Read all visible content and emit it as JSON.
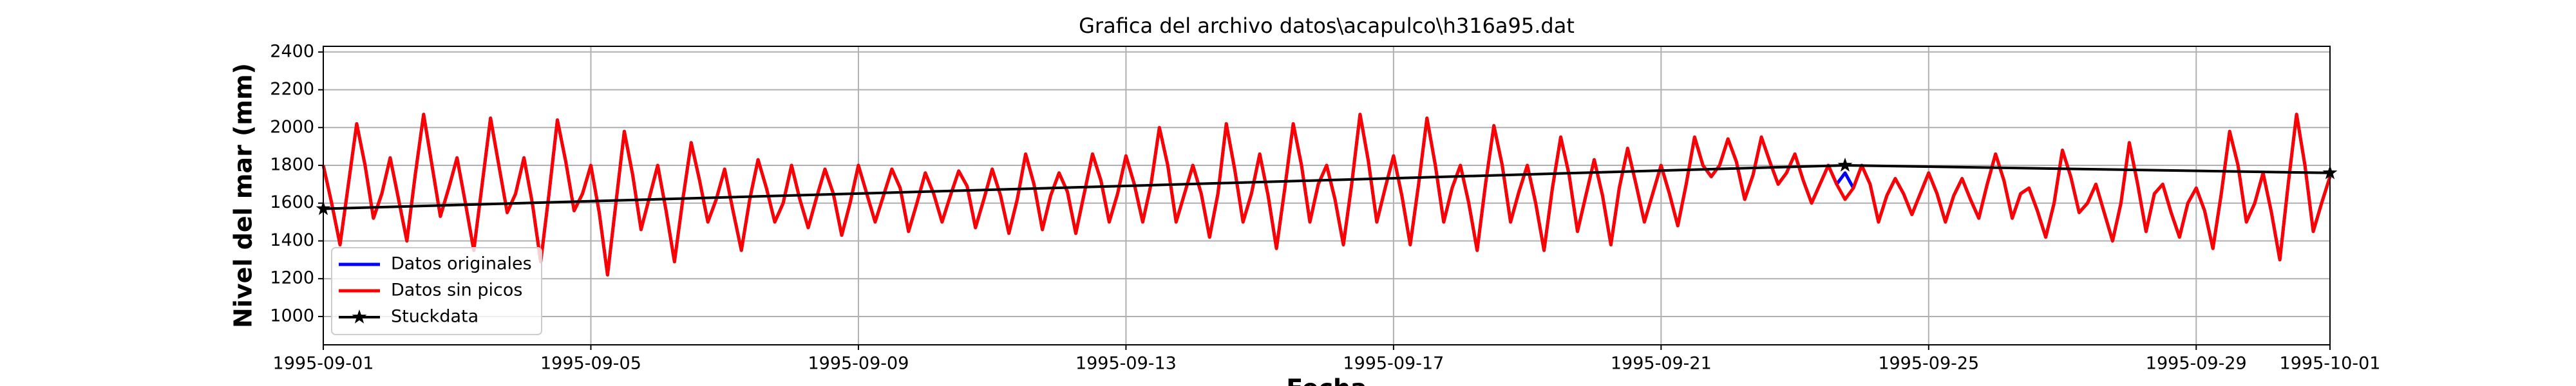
{
  "chart_data": {
    "type": "line",
    "title": "Grafica del archivo datos\\acapulco\\h316a95.dat",
    "y_label": "Nivel del mar (mm)",
    "x_label": "Fecha",
    "xlim": [
      "1995-09-01",
      "1995-10-01"
    ],
    "xticks": [
      "1995-09-01",
      "1995-09-05",
      "1995-09-09",
      "1995-09-13",
      "1995-09-17",
      "1995-09-21",
      "1995-09-25",
      "1995-09-29",
      "1995-10-01"
    ],
    "ylim": [
      850,
      2430
    ],
    "yticks": [
      1000,
      1200,
      1400,
      1600,
      1800,
      2000,
      2200,
      2400
    ],
    "grid": true,
    "legend_position": "lower left",
    "x": [
      "1995-09-01 00:00",
      "1995-09-01 03:00",
      "1995-09-01 06:00",
      "1995-09-01 09:00",
      "1995-09-01 12:00",
      "1995-09-01 15:00",
      "1995-09-01 18:00",
      "1995-09-01 21:00",
      "1995-09-02 00:00",
      "1995-09-02 03:00",
      "1995-09-02 06:00",
      "1995-09-02 09:00",
      "1995-09-02 12:00",
      "1995-09-02 15:00",
      "1995-09-02 18:00",
      "1995-09-02 21:00",
      "1995-09-03 00:00",
      "1995-09-03 03:00",
      "1995-09-03 06:00",
      "1995-09-03 09:00",
      "1995-09-03 12:00",
      "1995-09-03 15:00",
      "1995-09-03 18:00",
      "1995-09-03 21:00",
      "1995-09-04 00:00",
      "1995-09-04 03:00",
      "1995-09-04 06:00",
      "1995-09-04 09:00",
      "1995-09-04 12:00",
      "1995-09-04 15:00",
      "1995-09-04 18:00",
      "1995-09-04 21:00",
      "1995-09-05 00:00",
      "1995-09-05 03:00",
      "1995-09-05 06:00",
      "1995-09-05 09:00",
      "1995-09-05 12:00",
      "1995-09-05 15:00",
      "1995-09-05 18:00",
      "1995-09-05 21:00",
      "1995-09-06 00:00",
      "1995-09-06 03:00",
      "1995-09-06 06:00",
      "1995-09-06 09:00",
      "1995-09-06 12:00",
      "1995-09-06 15:00",
      "1995-09-06 18:00",
      "1995-09-06 21:00",
      "1995-09-07 00:00",
      "1995-09-07 03:00",
      "1995-09-07 06:00",
      "1995-09-07 09:00",
      "1995-09-07 12:00",
      "1995-09-07 15:00",
      "1995-09-07 18:00",
      "1995-09-07 21:00",
      "1995-09-08 00:00",
      "1995-09-08 03:00",
      "1995-09-08 06:00",
      "1995-09-08 09:00",
      "1995-09-08 12:00",
      "1995-09-08 15:00",
      "1995-09-08 18:00",
      "1995-09-08 21:00",
      "1995-09-09 00:00",
      "1995-09-09 03:00",
      "1995-09-09 06:00",
      "1995-09-09 09:00",
      "1995-09-09 12:00",
      "1995-09-09 15:00",
      "1995-09-09 18:00",
      "1995-09-09 21:00",
      "1995-09-10 00:00",
      "1995-09-10 03:00",
      "1995-09-10 06:00",
      "1995-09-10 09:00",
      "1995-09-10 12:00",
      "1995-09-10 15:00",
      "1995-09-10 18:00",
      "1995-09-10 21:00",
      "1995-09-11 00:00",
      "1995-09-11 03:00",
      "1995-09-11 06:00",
      "1995-09-11 09:00",
      "1995-09-11 12:00",
      "1995-09-11 15:00",
      "1995-09-11 18:00",
      "1995-09-11 21:00",
      "1995-09-12 00:00",
      "1995-09-12 03:00",
      "1995-09-12 06:00",
      "1995-09-12 09:00",
      "1995-09-12 12:00",
      "1995-09-12 15:00",
      "1995-09-12 18:00",
      "1995-09-12 21:00",
      "1995-09-13 00:00",
      "1995-09-13 03:00",
      "1995-09-13 06:00",
      "1995-09-13 09:00",
      "1995-09-13 12:00",
      "1995-09-13 15:00",
      "1995-09-13 18:00",
      "1995-09-13 21:00",
      "1995-09-14 00:00",
      "1995-09-14 03:00",
      "1995-09-14 06:00",
      "1995-09-14 09:00",
      "1995-09-14 12:00",
      "1995-09-14 15:00",
      "1995-09-14 18:00",
      "1995-09-14 21:00",
      "1995-09-15 00:00",
      "1995-09-15 03:00",
      "1995-09-15 06:00",
      "1995-09-15 09:00",
      "1995-09-15 12:00",
      "1995-09-15 15:00",
      "1995-09-15 18:00",
      "1995-09-15 21:00",
      "1995-09-16 00:00",
      "1995-09-16 03:00",
      "1995-09-16 06:00",
      "1995-09-16 09:00",
      "1995-09-16 12:00",
      "1995-09-16 15:00",
      "1995-09-16 18:00",
      "1995-09-16 21:00",
      "1995-09-17 00:00",
      "1995-09-17 03:00",
      "1995-09-17 06:00",
      "1995-09-17 09:00",
      "1995-09-17 12:00",
      "1995-09-17 15:00",
      "1995-09-17 18:00",
      "1995-09-17 21:00",
      "1995-09-18 00:00",
      "1995-09-18 03:00",
      "1995-09-18 06:00",
      "1995-09-18 09:00",
      "1995-09-18 12:00",
      "1995-09-18 15:00",
      "1995-09-18 18:00",
      "1995-09-18 21:00",
      "1995-09-19 00:00",
      "1995-09-19 03:00",
      "1995-09-19 06:00",
      "1995-09-19 09:00",
      "1995-09-19 12:00",
      "1995-09-19 15:00",
      "1995-09-19 18:00",
      "1995-09-19 21:00",
      "1995-09-20 00:00",
      "1995-09-20 03:00",
      "1995-09-20 06:00",
      "1995-09-20 09:00",
      "1995-09-20 12:00",
      "1995-09-20 15:00",
      "1995-09-20 18:00",
      "1995-09-20 21:00",
      "1995-09-21 00:00",
      "1995-09-21 03:00",
      "1995-09-21 06:00",
      "1995-09-21 09:00",
      "1995-09-21 12:00",
      "1995-09-21 15:00",
      "1995-09-21 18:00",
      "1995-09-21 21:00",
      "1995-09-22 00:00",
      "1995-09-22 03:00",
      "1995-09-22 06:00",
      "1995-09-22 09:00",
      "1995-09-22 12:00",
      "1995-09-22 15:00",
      "1995-09-22 18:00",
      "1995-09-22 21:00",
      "1995-09-23 00:00",
      "1995-09-23 03:00",
      "1995-09-23 06:00",
      "1995-09-23 09:00",
      "1995-09-23 12:00",
      "1995-09-23 15:00",
      "1995-09-23 18:00",
      "1995-09-23 21:00",
      "1995-09-24 00:00",
      "1995-09-24 03:00",
      "1995-09-24 06:00",
      "1995-09-24 09:00",
      "1995-09-24 12:00",
      "1995-09-24 15:00",
      "1995-09-24 18:00",
      "1995-09-24 21:00",
      "1995-09-25 00:00",
      "1995-09-25 03:00",
      "1995-09-25 06:00",
      "1995-09-25 09:00",
      "1995-09-25 12:00",
      "1995-09-25 15:00",
      "1995-09-25 18:00",
      "1995-09-25 21:00",
      "1995-09-26 00:00",
      "1995-09-26 03:00",
      "1995-09-26 06:00",
      "1995-09-26 09:00",
      "1995-09-26 12:00",
      "1995-09-26 15:00",
      "1995-09-26 18:00",
      "1995-09-26 21:00",
      "1995-09-27 00:00",
      "1995-09-27 03:00",
      "1995-09-27 06:00",
      "1995-09-27 09:00",
      "1995-09-27 12:00",
      "1995-09-27 15:00",
      "1995-09-27 18:00",
      "1995-09-27 21:00",
      "1995-09-28 00:00",
      "1995-09-28 03:00",
      "1995-09-28 06:00",
      "1995-09-28 09:00",
      "1995-09-28 12:00",
      "1995-09-28 15:00",
      "1995-09-28 18:00",
      "1995-09-28 21:00",
      "1995-09-29 00:00",
      "1995-09-29 03:00",
      "1995-09-29 06:00",
      "1995-09-29 09:00",
      "1995-09-29 12:00",
      "1995-09-29 15:00",
      "1995-09-29 18:00",
      "1995-09-29 21:00",
      "1995-09-30 00:00",
      "1995-09-30 03:00",
      "1995-09-30 06:00",
      "1995-09-30 09:00",
      "1995-09-30 12:00",
      "1995-09-30 15:00",
      "1995-09-30 18:00",
      "1995-09-30 21:00",
      "1995-10-01 00:00"
    ],
    "series": [
      {
        "name": "Datos originales",
        "color": "#0000ff",
        "values": [
          1800,
          1600,
          1380,
          1700,
          2020,
          1800,
          1520,
          1650,
          1840,
          1620,
          1400,
          1750,
          2070,
          1800,
          1530,
          1680,
          1840,
          1600,
          1350,
          1700,
          2050,
          1800,
          1550,
          1650,
          1840,
          1600,
          1290,
          1650,
          2040,
          1820,
          1560,
          1650,
          1800,
          1550,
          1220,
          1600,
          1980,
          1750,
          1460,
          1630,
          1800,
          1560,
          1290,
          1620,
          1920,
          1720,
          1500,
          1620,
          1780,
          1560,
          1350,
          1620,
          1830,
          1680,
          1500,
          1600,
          1800,
          1620,
          1470,
          1630,
          1780,
          1650,
          1430,
          1600,
          1800,
          1650,
          1500,
          1640,
          1780,
          1680,
          1450,
          1600,
          1760,
          1650,
          1500,
          1640,
          1770,
          1690,
          1470,
          1620,
          1780,
          1640,
          1440,
          1620,
          1860,
          1700,
          1460,
          1640,
          1760,
          1660,
          1440,
          1650,
          1860,
          1720,
          1500,
          1650,
          1850,
          1700,
          1500,
          1700,
          2000,
          1800,
          1500,
          1650,
          1800,
          1650,
          1420,
          1650,
          2020,
          1780,
          1500,
          1650,
          1860,
          1640,
          1360,
          1680,
          2020,
          1800,
          1500,
          1700,
          1800,
          1620,
          1380,
          1700,
          2070,
          1820,
          1500,
          1680,
          1850,
          1640,
          1380,
          1700,
          2050,
          1800,
          1500,
          1680,
          1800,
          1600,
          1350,
          1700,
          2010,
          1800,
          1500,
          1660,
          1800,
          1600,
          1350,
          1680,
          1950,
          1750,
          1450,
          1640,
          1830,
          1640,
          1380,
          1680,
          1890,
          1700,
          1500,
          1650,
          1800,
          1650,
          1480,
          1700,
          1950,
          1800,
          1740,
          1800,
          1940,
          1820,
          1620,
          1750,
          1950,
          1820,
          1700,
          1760,
          1860,
          1720,
          1600,
          1700,
          1800,
          1700,
          1760,
          1680,
          1800,
          1700,
          1500,
          1640,
          1730,
          1650,
          1540,
          1650,
          1760,
          1650,
          1500,
          1640,
          1730,
          1620,
          1520,
          1700,
          1860,
          1720,
          1520,
          1650,
          1680,
          1560,
          1420,
          1600,
          1880,
          1740,
          1550,
          1600,
          1700,
          1550,
          1400,
          1600,
          1920,
          1700,
          1450,
          1650,
          1700,
          1550,
          1420,
          1600,
          1680,
          1560,
          1360,
          1650,
          1980,
          1800,
          1500,
          1600,
          1760,
          1550,
          1300,
          1700,
          2070,
          1800,
          1450,
          1600,
          1740
        ]
      },
      {
        "name": "Datos sin picos",
        "color": "#ff0000",
        "values": [
          1800,
          1600,
          1380,
          1700,
          2020,
          1800,
          1520,
          1650,
          1840,
          1620,
          1400,
          1750,
          2070,
          1800,
          1530,
          1680,
          1840,
          1600,
          1350,
          1700,
          2050,
          1800,
          1550,
          1650,
          1840,
          1600,
          1290,
          1650,
          2040,
          1820,
          1560,
          1650,
          1800,
          1550,
          1220,
          1600,
          1980,
          1750,
          1460,
          1630,
          1800,
          1560,
          1290,
          1620,
          1920,
          1720,
          1500,
          1620,
          1780,
          1560,
          1350,
          1620,
          1830,
          1680,
          1500,
          1600,
          1800,
          1620,
          1470,
          1630,
          1780,
          1650,
          1430,
          1600,
          1800,
          1650,
          1500,
          1640,
          1780,
          1680,
          1450,
          1600,
          1760,
          1650,
          1500,
          1640,
          1770,
          1690,
          1470,
          1620,
          1780,
          1640,
          1440,
          1620,
          1860,
          1700,
          1460,
          1640,
          1760,
          1660,
          1440,
          1650,
          1860,
          1720,
          1500,
          1650,
          1850,
          1700,
          1500,
          1700,
          2000,
          1800,
          1500,
          1650,
          1800,
          1650,
          1420,
          1650,
          2020,
          1780,
          1500,
          1650,
          1860,
          1640,
          1360,
          1680,
          2020,
          1800,
          1500,
          1700,
          1800,
          1620,
          1380,
          1700,
          2070,
          1820,
          1500,
          1680,
          1850,
          1640,
          1380,
          1700,
          2050,
          1800,
          1500,
          1680,
          1800,
          1600,
          1350,
          1700,
          2010,
          1800,
          1500,
          1660,
          1800,
          1600,
          1350,
          1680,
          1950,
          1750,
          1450,
          1640,
          1830,
          1640,
          1380,
          1680,
          1890,
          1700,
          1500,
          1650,
          1800,
          1650,
          1480,
          1700,
          1950,
          1800,
          1740,
          1800,
          1940,
          1820,
          1620,
          1750,
          1950,
          1820,
          1700,
          1760,
          1860,
          1720,
          1600,
          1700,
          1800,
          1700,
          1620,
          1680,
          1800,
          1700,
          1500,
          1640,
          1730,
          1650,
          1540,
          1650,
          1760,
          1650,
          1500,
          1640,
          1730,
          1620,
          1520,
          1700,
          1860,
          1720,
          1520,
          1650,
          1680,
          1560,
          1420,
          1600,
          1880,
          1740,
          1550,
          1600,
          1700,
          1550,
          1400,
          1600,
          1920,
          1700,
          1450,
          1650,
          1700,
          1550,
          1420,
          1600,
          1680,
          1560,
          1360,
          1650,
          1980,
          1800,
          1500,
          1600,
          1760,
          1550,
          1300,
          1700,
          2070,
          1800,
          1450,
          1600,
          1740
        ]
      },
      {
        "name": "Stuckdata",
        "color": "#000000",
        "marker": "star",
        "x": [
          "1995-09-01 00:00",
          "1995-09-23 18:00",
          "1995-10-01 00:00"
        ],
        "values": [
          1570,
          1800,
          1760
        ]
      }
    ]
  }
}
